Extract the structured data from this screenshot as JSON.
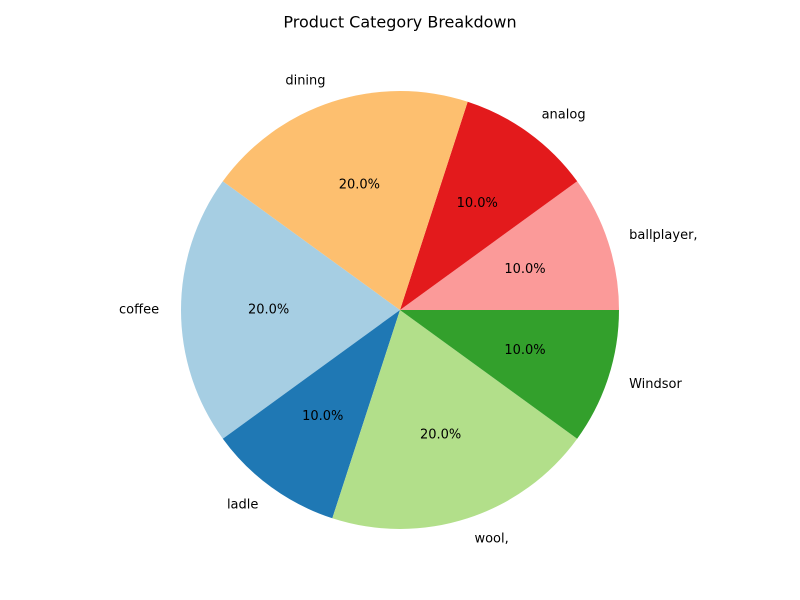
{
  "chart_data": {
    "type": "pie",
    "title": "Product Category Breakdown",
    "categories": [
      "coffee",
      "ladle",
      "wool,",
      "Windsor",
      "ballplayer,",
      "analog",
      "dining"
    ],
    "values": [
      20,
      10,
      20,
      10,
      10,
      10,
      20
    ],
    "value_labels": [
      "20.0%",
      "10.0%",
      "20.0%",
      "10.0%",
      "10.0%",
      "10.0%",
      "20.0%"
    ],
    "colors": [
      "#a6cee3",
      "#1f78b4",
      "#b2df8a",
      "#33a02c",
      "#fb9a99",
      "#e31a1c",
      "#fdbf6f"
    ]
  }
}
